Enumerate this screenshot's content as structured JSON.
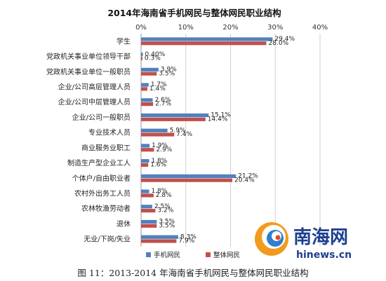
{
  "chart_data": {
    "type": "bar",
    "orientation": "horizontal",
    "title": "2014年海南省手机网民与整体网民职业结构",
    "x_ticks": [
      "0%",
      "10%",
      "20%",
      "30%",
      "40%"
    ],
    "xlim": [
      0,
      40
    ],
    "grid": true,
    "legend_position": "bottom",
    "categories": [
      "学生",
      "党政机关事业单位领导干部",
      "党政机关事业单位一般职员",
      "企业/公司高层管理人员",
      "企业/公司中层管理人员",
      "企业/公司一般职员",
      "专业技术人员",
      "商业服务业职工",
      "制造生产型企业工人",
      "个体户/自由职业者",
      "农村外出务工人员",
      "农林牧渔劳动者",
      "退休",
      "无业/下岗/失业"
    ],
    "series": [
      {
        "name": "手机网民",
        "color": "#4f81bd",
        "values": [
          29.4,
          0.4,
          3.9,
          1.7,
          2.6,
          15.1,
          5.9,
          1.9,
          1.8,
          21.2,
          1.8,
          2.5,
          3.5,
          8.3
        ],
        "labels": [
          "29.4%",
          "0.40%",
          "3.9%",
          "1.7%",
          "2.6%",
          "15.1%",
          "5.9%",
          "1.9%",
          "1.8%",
          "21.2%",
          "1.8%",
          "2.5%",
          "3.5%",
          "8.3%"
        ]
      },
      {
        "name": "整体网民",
        "color": "#c0504d",
        "values": [
          28.0,
          0.3,
          3.5,
          1.4,
          2.7,
          14.4,
          7.4,
          2.9,
          1.6,
          20.4,
          2.8,
          3.2,
          3.5,
          7.9
        ],
        "labels": [
          "28.0%",
          "0.3%",
          "3.5%",
          "1.4%",
          "2.7%",
          "14.4%",
          "7.4%",
          "2.9%",
          "1.6%",
          "20.4%",
          "2.8%",
          "3.2%",
          "3.5%",
          "7.9%"
        ]
      }
    ]
  },
  "watermark": {
    "brand_text": "南海网",
    "url_text": "hinews.cn",
    "text_color": "#1c3f8f"
  },
  "caption": "图 11：2013-2014 年海南省手机网民与整体网民职业结构"
}
